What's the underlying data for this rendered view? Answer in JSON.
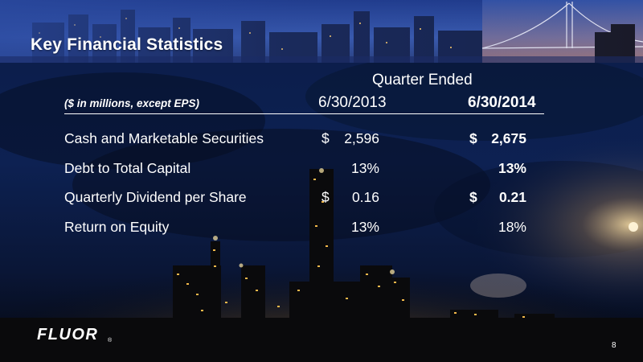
{
  "slide": {
    "title": "Key Financial Statistics",
    "page_number": "8"
  },
  "logo": {
    "text": "FLUOR",
    "mark": "®"
  },
  "table": {
    "group_header": "Quarter Ended",
    "units_note": "($ in millions, except EPS)",
    "columns": [
      "6/30/2013",
      "6/30/2014"
    ],
    "rows": [
      {
        "label": "Cash and Marketable Securities",
        "c1_currency": "$",
        "c1": "2,596",
        "c2_currency": "$",
        "c2": "2,675"
      },
      {
        "label": "Debt to Total Capital",
        "c1_currency": "",
        "c1": "13%",
        "c2_currency": "",
        "c2": "13%"
      },
      {
        "label": "Quarterly Dividend per Share",
        "c1_currency": "$",
        "c1": "0.16",
        "c2_currency": "$",
        "c2": "0.21"
      },
      {
        "label": "Return on Equity",
        "c1_currency": "",
        "c1": "13%",
        "c2_currency": "",
        "c2": "18%"
      }
    ]
  },
  "colors": {
    "text": "#ffffff",
    "sky_top": "#0c1f4f",
    "sky_bottom": "#050a1a",
    "light_glow": "#f0b040"
  }
}
